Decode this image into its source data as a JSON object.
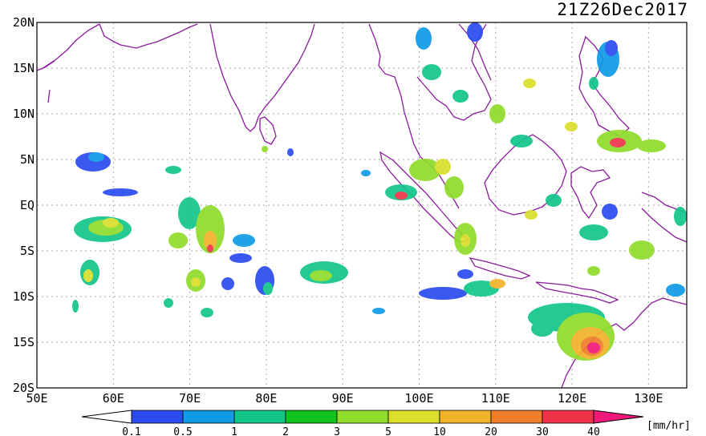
{
  "map": {
    "timestamp": "21Z26Dec2017",
    "lat_labels": [
      "20N",
      "15N",
      "10N",
      "5N",
      "EQ",
      "5S",
      "10S",
      "15S",
      "20S"
    ],
    "lon_labels": [
      "50E",
      "60E",
      "70E",
      "80E",
      "90E",
      "100E",
      "110E",
      "120E",
      "130E"
    ],
    "extent": {
      "lon": [
        50,
        135
      ],
      "lat": [
        -20,
        20
      ]
    },
    "grid": true
  },
  "legend": {
    "unit_label": "[mm/hr]",
    "tick_labels": [
      "0.1",
      "0.5",
      "1",
      "2",
      "3",
      "5",
      "10",
      "20",
      "30",
      "40"
    ],
    "colors": [
      "#2a4bf0",
      "#0f9ae6",
      "#12c58a",
      "#12c21e",
      "#8fdc2a",
      "#d9df2a",
      "#f0b22a",
      "#f07d2a",
      "#f0344a",
      "#f0187a"
    ]
  },
  "colors": {
    "coastline": "#8a1a9e",
    "grid": "#aaaaaa"
  }
}
